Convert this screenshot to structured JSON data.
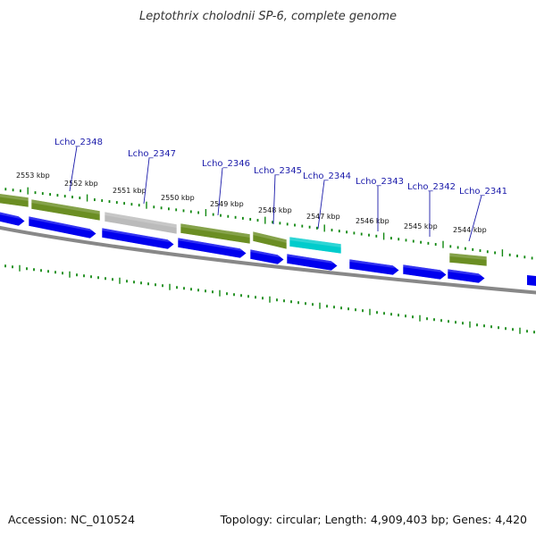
{
  "title": "Leptothrix cholodnii SP-6, complete genome",
  "footer": {
    "accession": "Accession: NC_010524",
    "summary": "Topology: circular; Length: 4,909,403 bp; Genes: 4,420"
  },
  "colors": {
    "forward_cds": "#6b8e23",
    "reverse_cds": "#0000ee",
    "pseudo": "#bbbbbb",
    "rna": "#00cccc",
    "backbone": "#888888",
    "ticks": "#118811",
    "label": "#1a1aaa"
  },
  "kbp_labels": [
    "2553 kbp",
    "2552 kbp",
    "2551 kbp",
    "2550 kbp",
    "2549 kbp",
    "2548 kbp",
    "2547 kbp",
    "2546 kbp",
    "2545 kbp",
    "2544 kbp"
  ],
  "gene_labels": [
    "Lcho_2348",
    "Lcho_2347",
    "Lcho_2346",
    "Lcho_2345",
    "Lcho_2344",
    "Lcho_2343",
    "Lcho_2342",
    "Lcho_2341"
  ],
  "features": [
    {
      "kind": "forward_cds",
      "label": null
    },
    {
      "kind": "forward_cds",
      "label": "Lcho_2348"
    },
    {
      "kind": "pseudo",
      "label": "Lcho_2347"
    },
    {
      "kind": "forward_cds",
      "label": "Lcho_2346"
    },
    {
      "kind": "forward_cds",
      "label": "Lcho_2345"
    },
    {
      "kind": "rna",
      "label": "Lcho_2344"
    },
    {
      "kind": "forward_cds",
      "label": "Lcho_2341"
    },
    {
      "kind": "reverse_cds",
      "label": null
    },
    {
      "kind": "reverse_cds",
      "label": null
    },
    {
      "kind": "reverse_cds",
      "label": null
    },
    {
      "kind": "reverse_cds",
      "label": null
    },
    {
      "kind": "reverse_cds",
      "label": null
    },
    {
      "kind": "reverse_cds",
      "label": null
    },
    {
      "kind": "reverse_cds",
      "label": null
    },
    {
      "kind": "reverse_cds",
      "label": null
    },
    {
      "kind": "reverse_cds",
      "label": null
    }
  ]
}
